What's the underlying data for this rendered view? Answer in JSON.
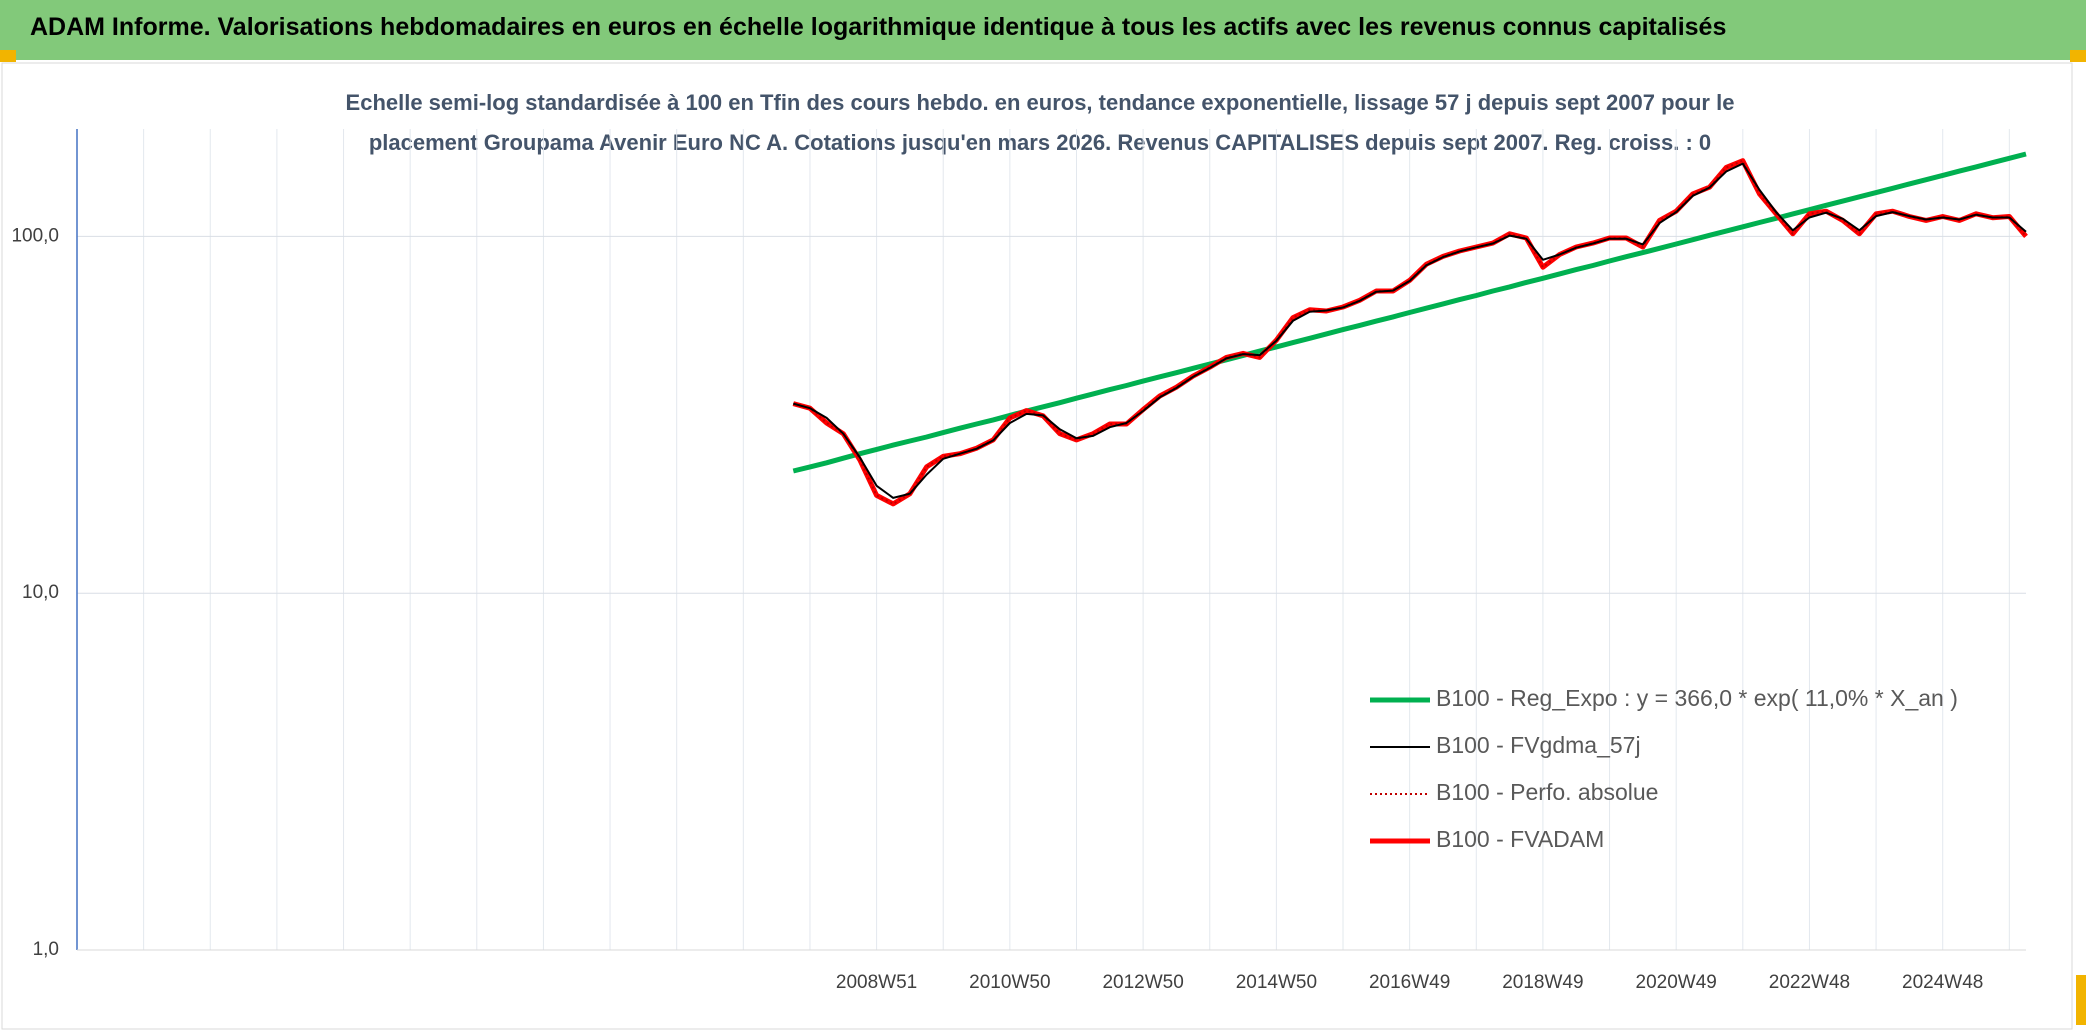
{
  "chart_data": {
    "type": "line",
    "title": "ADAM Informe. Valorisations hebdomadaires en euros en échelle logarithmique identique à tous les actifs avec les revenus connus capitalisés",
    "subtitle": [
      "Echelle semi-log standardisée à 100 en Tfin des cours hebdo. en euros, tendance exponentielle, lissage 57 j depuis sept 2007 pour le",
      "placement Groupama Avenir Euro NC A. Cotations jusqu'en mars 2026. Revenus CAPITALISES depuis sept 2007. Reg. croiss. : 0"
    ],
    "log_scale": true,
    "grid": true,
    "legend": "lower right",
    "ylim": [
      1,
      200
    ],
    "yticks": [
      {
        "value": 1,
        "label": "1,0"
      },
      {
        "value": 10,
        "label": "10,0"
      },
      {
        "value": 100,
        "label": "100,0"
      }
    ],
    "categories": [
      null,
      null,
      null,
      null,
      null,
      null,
      null,
      null,
      null,
      null,
      null,
      null,
      null,
      null,
      null,
      null,
      null,
      null,
      null,
      null,
      null,
      null,
      null,
      null,
      null,
      null,
      null,
      null,
      null,
      null,
      null,
      null,
      null,
      null,
      null,
      null,
      null,
      null,
      null,
      null,
      null,
      null,
      null,
      null,
      null,
      null,
      null,
      null,
      "2008W51",
      null,
      null,
      null,
      null,
      null,
      null,
      null,
      "2010W50",
      null,
      null,
      null,
      null,
      null,
      null,
      null,
      "2012W50",
      null,
      null,
      null,
      null,
      null,
      null,
      null,
      "2014W50",
      null,
      null,
      null,
      null,
      null,
      null,
      null,
      "2016W49",
      null,
      null,
      null,
      null,
      null,
      null,
      null,
      "2018W49",
      null,
      null,
      null,
      null,
      null,
      null,
      null,
      "2020W49",
      null,
      null,
      null,
      null,
      null,
      null,
      null,
      "2022W48",
      null,
      null,
      null,
      null,
      null,
      null,
      null,
      "2024W48",
      null,
      null,
      null,
      null,
      null
    ],
    "series": [
      {
        "name": "B100 - Reg_Expo : y = 366,0 * exp( 11,0% *  X_an )",
        "color": "#00b050",
        "line_style": "solid",
        "values": [
          null,
          null,
          null,
          null,
          null,
          null,
          null,
          null,
          null,
          null,
          null,
          null,
          null,
          null,
          null,
          null,
          null,
          null,
          null,
          null,
          null,
          null,
          null,
          null,
          null,
          null,
          null,
          null,
          null,
          null,
          null,
          null,
          null,
          null,
          null,
          null,
          null,
          null,
          null,
          null,
          null,
          null,
          null,
          22.0,
          22.6,
          23.2,
          23.9,
          24.6,
          25.3,
          26.0,
          26.7,
          27.4,
          28.2,
          29.0,
          29.8,
          30.6,
          31.5,
          32.4,
          33.3,
          34.2,
          35.2,
          36.2,
          37.2,
          38.2,
          39.3,
          40.4,
          41.5,
          42.7,
          43.9,
          45.1,
          46.4,
          47.7,
          49.0,
          50.4,
          51.8,
          53.3,
          54.8,
          56.3,
          57.9,
          59.5,
          61.2,
          62.9,
          64.7,
          66.5,
          68.3,
          70.3,
          72.2,
          74.3,
          76.3,
          78.5,
          80.7,
          82.9,
          85.3,
          87.7,
          90.1,
          92.6,
          95.2,
          97.9,
          100.7,
          103.5,
          106.4,
          109.4,
          112.4,
          115.6,
          118.8,
          122.2,
          125.6,
          129.1,
          132.7,
          136.4,
          140.3,
          144.2,
          148.2,
          152.4,
          156.6,
          161.0,
          165.5,
          170.2
        ]
      },
      {
        "name": "B100 - FVgdma_57j",
        "color": "#000000",
        "line_style": "solid",
        "values": [
          null,
          null,
          null,
          null,
          null,
          null,
          null,
          null,
          null,
          null,
          null,
          null,
          null,
          null,
          null,
          null,
          null,
          null,
          null,
          null,
          null,
          null,
          null,
          null,
          null,
          null,
          null,
          null,
          null,
          null,
          null,
          null,
          null,
          null,
          null,
          null,
          null,
          null,
          null,
          null,
          null,
          null,
          null,
          34,
          33,
          31,
          28,
          24,
          20,
          18.5,
          19,
          21.5,
          23.8,
          24.6,
          25.4,
          26.8,
          30,
          31.8,
          31.5,
          28.8,
          27.2,
          27.6,
          29.2,
          30,
          32.4,
          35.4,
          37.6,
          40.4,
          42.8,
          45.5,
          46.8,
          46.5,
          51,
          58,
          61.5,
          62,
          63.2,
          66,
          70,
          70.5,
          75,
          83,
          87.5,
          90.8,
          93.2,
          95.5,
          100.5,
          98.5,
          86,
          89,
          93,
          95.5,
          98.5,
          98.5,
          95,
          109,
          117,
          130,
          137,
          152,
          160,
          135,
          117,
          104,
          113,
          116.5,
          112,
          104,
          114,
          117,
          114,
          111.5,
          113,
          111.5,
          115,
          113,
          113,
          103
        ]
      },
      {
        "name": "B100 - Perfo. absolue",
        "color": "#c00000",
        "line_style": "dotted",
        "values": [
          null,
          null,
          null,
          null,
          null,
          null,
          null,
          null,
          null,
          null,
          null,
          null,
          null,
          null,
          null,
          null,
          null,
          null,
          null,
          null,
          null,
          null,
          null,
          null,
          null,
          null,
          null,
          null,
          null,
          null,
          null,
          null,
          null,
          null,
          null,
          null,
          null,
          null,
          null,
          null,
          null,
          null,
          null,
          34,
          33,
          30,
          28,
          23.6,
          18.8,
          17.8,
          19,
          22.6,
          24.2,
          24.6,
          25.5,
          26.9,
          31,
          32.5,
          31.4,
          28,
          26.9,
          28,
          29.8,
          29.8,
          32.7,
          35.7,
          37.8,
          40.6,
          43,
          45.8,
          47,
          45.8,
          51.2,
          59.2,
          62.3,
          61.8,
          63.4,
          66.2,
          70.3,
          70.3,
          75.3,
          83.5,
          87.9,
          91,
          93.4,
          95.8,
          101.7,
          99,
          82,
          89,
          93.4,
          95.8,
          99,
          99,
          93.4,
          110.9,
          117.7,
          131.6,
          137.4,
          156,
          163,
          131.6,
          115.7,
          101.7,
          115.7,
          117.7,
          110.9,
          101.7,
          115.7,
          117.7,
          113.7,
          110.9,
          113.7,
          110.9,
          115.7,
          112.8,
          113.7,
          100
        ]
      },
      {
        "name": "B100 - FVADAM",
        "color": "#ff0000",
        "line_style": "solid",
        "values": [
          null,
          null,
          null,
          null,
          null,
          null,
          null,
          null,
          null,
          null,
          null,
          null,
          null,
          null,
          null,
          null,
          null,
          null,
          null,
          null,
          null,
          null,
          null,
          null,
          null,
          null,
          null,
          null,
          null,
          null,
          null,
          null,
          null,
          null,
          null,
          null,
          null,
          null,
          null,
          null,
          null,
          null,
          null,
          34,
          33,
          30,
          28,
          23.6,
          18.8,
          17.8,
          19,
          22.6,
          24.2,
          24.6,
          25.5,
          26.9,
          31,
          32.5,
          31.4,
          28,
          26.9,
          28,
          29.8,
          29.8,
          32.7,
          35.7,
          37.8,
          40.6,
          43,
          45.8,
          47,
          45.8,
          51.2,
          59.2,
          62.3,
          61.8,
          63.4,
          66.2,
          70.3,
          70.3,
          75.3,
          83.5,
          87.9,
          91,
          93.4,
          95.8,
          101.7,
          99,
          82,
          89,
          93.4,
          95.8,
          99,
          99,
          93.4,
          110.9,
          117.7,
          131.6,
          137.4,
          156,
          163,
          131.6,
          115.7,
          101.7,
          115.7,
          117.7,
          110.9,
          101.7,
          115.7,
          117.7,
          113.7,
          110.9,
          113.7,
          110.9,
          115.7,
          112.8,
          113.7,
          100
        ]
      }
    ]
  }
}
